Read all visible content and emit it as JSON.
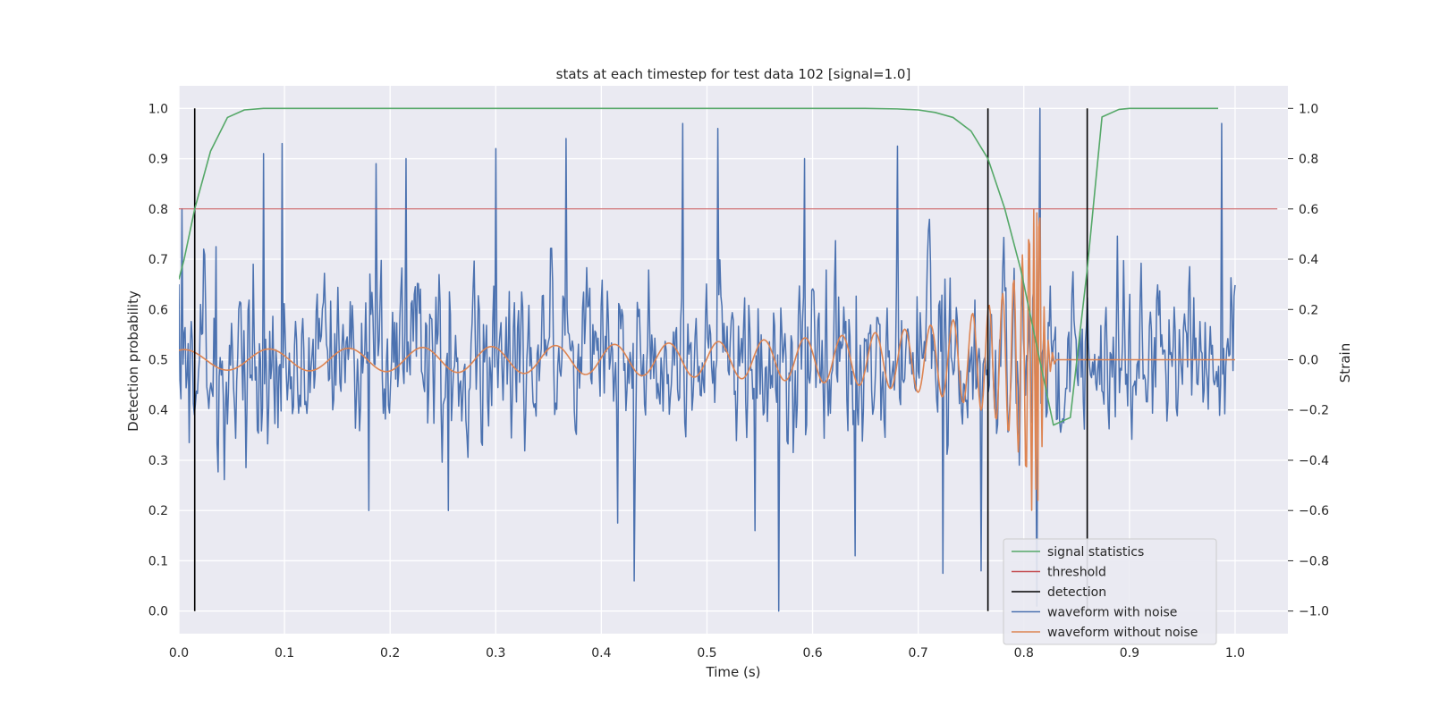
{
  "chart_data": {
    "type": "line",
    "title": "stats at each timestep for test data 102 [signal=1.0]",
    "xlabel": "Time (s)",
    "ylabel": "Detection probability",
    "y2label": "Strain",
    "xlim": [
      0.0,
      1.05
    ],
    "ylim": [
      -0.045,
      1.045
    ],
    "y2lim": [
      -1.09,
      1.09
    ],
    "grid": true,
    "legend_position": "lower-right",
    "x_ticks": [
      0.0,
      0.1,
      0.2,
      0.3,
      0.4,
      0.5,
      0.6,
      0.7,
      0.8,
      0.9,
      1.0
    ],
    "x_tick_labels": [
      "0.0",
      "0.1",
      "0.2",
      "0.3",
      "0.4",
      "0.5",
      "0.6",
      "0.7",
      "0.8",
      "0.9",
      "1.0"
    ],
    "y_ticks": [
      0.0,
      0.1,
      0.2,
      0.3,
      0.4,
      0.5,
      0.6,
      0.7,
      0.8,
      0.9,
      1.0
    ],
    "y_tick_labels": [
      "0.0",
      "0.1",
      "0.2",
      "0.3",
      "0.4",
      "0.5",
      "0.6",
      "0.7",
      "0.8",
      "0.9",
      "1.0"
    ],
    "y2_ticks": [
      -1.0,
      -0.8,
      -0.6,
      -0.4,
      -0.2,
      0.0,
      0.2,
      0.4,
      0.6,
      0.8,
      1.0
    ],
    "y2_tick_labels": [
      "−1.0",
      "−0.8",
      "−0.6",
      "−0.4",
      "−0.2",
      "0.0",
      "0.2",
      "0.4",
      "0.6",
      "0.8",
      "1.0"
    ],
    "series": [
      {
        "name": "signal statistics",
        "axis": "left",
        "color": "#55a868",
        "x": [
          0.0,
          0.005,
          0.015,
          0.03,
          0.046,
          0.062,
          0.08,
          0.1,
          0.3,
          0.5,
          0.6,
          0.65,
          0.68,
          0.7,
          0.716,
          0.733,
          0.75,
          0.766,
          0.782,
          0.797,
          0.813,
          0.828,
          0.844,
          0.86,
          0.874,
          0.89,
          0.9,
          0.95,
          0.984
        ],
        "y": [
          0.66,
          0.7,
          0.8,
          0.915,
          0.982,
          0.997,
          1.0,
          1.0,
          1.0,
          1.0,
          1.0,
          1.0,
          0.999,
          0.997,
          0.992,
          0.982,
          0.955,
          0.9,
          0.8,
          0.68,
          0.52,
          0.37,
          0.385,
          0.68,
          0.983,
          0.998,
          1.0,
          1.0,
          1.0
        ]
      },
      {
        "name": "threshold",
        "axis": "left",
        "color": "#c44e52",
        "x": [
          0.0,
          1.04
        ],
        "y": [
          0.8,
          0.8
        ]
      },
      {
        "name": "detection",
        "axis": "left",
        "color": "#000000",
        "events": [
          0.015,
          0.766,
          0.86
        ],
        "y": [
          0.0,
          1.0
        ]
      },
      {
        "name": "waveform with noise",
        "axis": "right",
        "color": "#4c72b0",
        "x_range": [
          0.0,
          1.0
        ],
        "num_points": 1024,
        "amplitude": 0.3,
        "seed": 102,
        "extremes": [
          [
            0.0,
            0.3
          ],
          [
            0.003,
            0.6
          ],
          [
            0.01,
            -0.33
          ],
          [
            0.035,
            0.45
          ],
          [
            0.07,
            0.38
          ],
          [
            0.08,
            0.82
          ],
          [
            0.098,
            0.86
          ],
          [
            0.187,
            0.78
          ],
          [
            0.18,
            -0.6
          ],
          [
            0.215,
            0.8
          ],
          [
            0.255,
            -0.6
          ],
          [
            0.3,
            0.84
          ],
          [
            0.367,
            0.88
          ],
          [
            0.415,
            -0.65
          ],
          [
            0.431,
            -0.88
          ],
          [
            0.477,
            0.94
          ],
          [
            0.51,
            0.92
          ],
          [
            0.545,
            -0.68
          ],
          [
            0.568,
            -1.0
          ],
          [
            0.592,
            0.8
          ],
          [
            0.64,
            -0.78
          ],
          [
            0.68,
            0.85
          ],
          [
            0.723,
            -0.85
          ],
          [
            0.76,
            -0.84
          ],
          [
            0.815,
            1.0
          ],
          [
            0.812,
            -0.98
          ],
          [
            0.987,
            0.94
          ]
        ]
      },
      {
        "name": "waveform without noise",
        "axis": "right",
        "color": "#dd8452",
        "x_range": [
          0.0,
          1.0
        ],
        "num_points": 1024,
        "chirp_merge_time": 0.815,
        "ringdown_end": 0.83,
        "amplitude_start": 0.04,
        "amplitude_peak": 0.6
      }
    ]
  }
}
